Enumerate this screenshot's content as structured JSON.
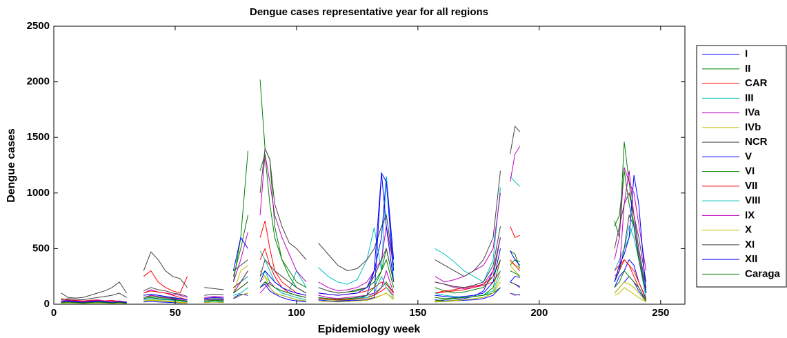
{
  "chart_data": {
    "type": "line",
    "title": "Dengue cases representative year for all regions",
    "x_label": "Epidemiology week",
    "y_label": "Dengue cases",
    "xlim": [
      0,
      260
    ],
    "xticks": [
      0,
      50,
      100,
      150,
      200,
      250
    ],
    "ylim": [
      0,
      2500
    ],
    "yticks": [
      0,
      500,
      1000,
      1500,
      2000,
      2500
    ],
    "legend": "outside-right",
    "x": [
      3,
      6,
      9,
      12,
      15,
      18,
      21,
      24,
      27,
      30,
      33,
      37,
      40,
      43,
      46,
      49,
      52,
      55,
      59,
      62,
      66,
      70,
      72,
      74,
      77,
      80,
      83,
      85,
      87,
      89,
      91,
      94,
      97,
      100,
      104,
      107,
      109,
      113,
      117,
      121,
      125,
      129,
      132,
      135,
      137,
      140,
      150,
      157,
      161,
      165,
      169,
      173,
      177,
      181,
      184,
      186,
      188,
      190,
      192,
      210,
      231,
      233,
      235,
      237,
      239,
      241,
      244
    ],
    "series": [
      {
        "name": "I",
        "color": "#0000ff",
        "values": [
          20,
          30,
          25,
          20,
          25,
          30,
          20,
          25,
          20,
          15,
          null,
          40,
          50,
          45,
          40,
          45,
          35,
          20,
          null,
          30,
          35,
          30,
          null,
          60,
          90,
          80,
          null,
          150,
          180,
          120,
          90,
          60,
          40,
          30,
          20,
          null,
          30,
          25,
          30,
          35,
          45,
          80,
          300,
          600,
          1150,
          400,
          null,
          40,
          30,
          35,
          50,
          70,
          120,
          300,
          600,
          null,
          200,
          250,
          240,
          null,
          150,
          250,
          300,
          400,
          350,
          200,
          50
        ]
      },
      {
        "name": "II",
        "color": "#008000",
        "values": [
          30,
          40,
          30,
          25,
          20,
          25,
          30,
          20,
          25,
          20,
          null,
          60,
          70,
          60,
          55,
          50,
          40,
          30,
          null,
          40,
          45,
          40,
          null,
          200,
          600,
          1380,
          null,
          2020,
          1400,
          1300,
          700,
          400,
          250,
          150,
          100,
          null,
          50,
          40,
          40,
          45,
          50,
          60,
          80,
          150,
          200,
          100,
          null,
          30,
          40,
          50,
          60,
          70,
          80,
          100,
          150,
          null,
          350,
          400,
          380,
          null,
          750,
          600,
          1460,
          1100,
          700,
          400,
          100
        ]
      },
      {
        "name": "CAR",
        "color": "#ff0000",
        "values": [
          50,
          40,
          35,
          30,
          35,
          40,
          30,
          35,
          25,
          20,
          null,
          250,
          300,
          200,
          150,
          120,
          100,
          250,
          null,
          50,
          60,
          55,
          null,
          150,
          200,
          250,
          null,
          600,
          750,
          500,
          300,
          200,
          150,
          100,
          80,
          null,
          100,
          90,
          80,
          90,
          100,
          120,
          150,
          200,
          180,
          100,
          null,
          100,
          110,
          120,
          130,
          150,
          170,
          200,
          300,
          null,
          700,
          600,
          620,
          null,
          200,
          300,
          400,
          350,
          250,
          150,
          30
        ]
      },
      {
        "name": "III",
        "color": "#00bfbf",
        "values": [
          20,
          25,
          20,
          15,
          20,
          25,
          20,
          15,
          20,
          15,
          null,
          80,
          90,
          80,
          70,
          60,
          50,
          40,
          null,
          30,
          40,
          35,
          null,
          100,
          200,
          250,
          null,
          480,
          400,
          300,
          200,
          150,
          120,
          300,
          150,
          null,
          330,
          250,
          200,
          180,
          220,
          400,
          690,
          300,
          1150,
          200,
          null,
          500,
          450,
          380,
          300,
          250,
          200,
          400,
          1050,
          null,
          1150,
          1100,
          1060,
          null,
          300,
          400,
          500,
          600,
          740,
          500,
          100
        ]
      },
      {
        "name": "IVa",
        "color": "#bf00bf",
        "values": [
          30,
          35,
          30,
          25,
          30,
          35,
          30,
          25,
          30,
          20,
          null,
          100,
          130,
          110,
          100,
          90,
          80,
          60,
          null,
          60,
          70,
          65,
          null,
          200,
          400,
          650,
          null,
          800,
          1350,
          1100,
          800,
          600,
          450,
          300,
          200,
          null,
          200,
          150,
          120,
          130,
          150,
          200,
          300,
          400,
          700,
          350,
          null,
          250,
          200,
          220,
          250,
          300,
          350,
          500,
          1000,
          null,
          1100,
          1350,
          1420,
          null,
          400,
          600,
          1230,
          1100,
          1000,
          720,
          300
        ]
      },
      {
        "name": "IVb",
        "color": "#bfbf00",
        "values": [
          15,
          20,
          15,
          10,
          15,
          20,
          15,
          10,
          15,
          10,
          null,
          30,
          40,
          35,
          30,
          25,
          20,
          15,
          null,
          20,
          25,
          20,
          null,
          100,
          300,
          350,
          null,
          300,
          250,
          200,
          150,
          100,
          80,
          60,
          40,
          null,
          50,
          40,
          35,
          40,
          45,
          50,
          60,
          80,
          100,
          50,
          null,
          30,
          25,
          35,
          40,
          50,
          60,
          100,
          200,
          null,
          380,
          350,
          330,
          null,
          80,
          100,
          150,
          120,
          90,
          60,
          20
        ]
      },
      {
        "name": "NCR",
        "color": "#404040",
        "values": [
          100,
          60,
          55,
          60,
          80,
          100,
          120,
          150,
          200,
          100,
          null,
          300,
          470,
          400,
          300,
          250,
          230,
          150,
          null,
          150,
          140,
          130,
          null,
          300,
          350,
          400,
          null,
          1000,
          1400,
          1300,
          900,
          700,
          550,
          500,
          400,
          null,
          550,
          450,
          350,
          300,
          320,
          400,
          500,
          700,
          800,
          350,
          null,
          400,
          350,
          300,
          250,
          300,
          400,
          600,
          1200,
          null,
          1350,
          1600,
          1550,
          null,
          500,
          700,
          900,
          1000,
          800,
          600,
          200
        ]
      },
      {
        "name": "V",
        "color": "#0000ff",
        "values": [
          10,
          15,
          12,
          10,
          12,
          15,
          10,
          12,
          10,
          8,
          null,
          20,
          25,
          20,
          18,
          15,
          12,
          10,
          null,
          15,
          20,
          15,
          null,
          50,
          80,
          100,
          null,
          150,
          200,
          150,
          100,
          80,
          60,
          40,
          30,
          null,
          40,
          30,
          25,
          30,
          35,
          40,
          60,
          1180,
          700,
          200,
          null,
          20,
          25,
          30,
          35,
          40,
          50,
          80,
          150,
          null,
          200,
          180,
          150,
          null,
          100,
          150,
          200,
          250,
          200,
          120,
          30
        ]
      },
      {
        "name": "VI",
        "color": "#008000",
        "values": [
          20,
          25,
          20,
          15,
          20,
          25,
          20,
          15,
          20,
          15,
          null,
          60,
          80,
          70,
          60,
          55,
          50,
          40,
          null,
          40,
          50,
          45,
          null,
          250,
          500,
          800,
          null,
          1200,
          1350,
          900,
          600,
          400,
          300,
          200,
          150,
          null,
          150,
          120,
          100,
          110,
          120,
          150,
          200,
          300,
          500,
          200,
          null,
          150,
          120,
          100,
          110,
          130,
          150,
          250,
          600,
          null,
          480,
          450,
          320,
          null,
          700,
          800,
          1200,
          900,
          700,
          450,
          100
        ]
      },
      {
        "name": "VII",
        "color": "#ff0000",
        "values": [
          15,
          20,
          18,
          15,
          18,
          20,
          15,
          18,
          15,
          10,
          null,
          100,
          120,
          110,
          100,
          80,
          60,
          40,
          null,
          30,
          35,
          30,
          null,
          100,
          150,
          200,
          null,
          400,
          500,
          350,
          250,
          150,
          100,
          80,
          60,
          null,
          50,
          45,
          40,
          45,
          50,
          60,
          80,
          120,
          150,
          80,
          null,
          100,
          120,
          130,
          150,
          160,
          180,
          250,
          400,
          null,
          400,
          350,
          300,
          null,
          300,
          350,
          400,
          350,
          300,
          200,
          40
        ]
      },
      {
        "name": "VIII",
        "color": "#00bfbf",
        "values": [
          10,
          12,
          10,
          8,
          10,
          12,
          10,
          8,
          10,
          8,
          null,
          40,
          50,
          45,
          40,
          35,
          30,
          20,
          null,
          20,
          25,
          20,
          null,
          80,
          100,
          150,
          null,
          250,
          300,
          200,
          150,
          100,
          80,
          60,
          40,
          null,
          60,
          50,
          45,
          50,
          55,
          60,
          100,
          250,
          150,
          60,
          null,
          100,
          80,
          70,
          60,
          70,
          80,
          120,
          300,
          null,
          100,
          90,
          80,
          null,
          200,
          300,
          500,
          700,
          600,
          400,
          50
        ]
      },
      {
        "name": "IX",
        "color": "#bf00bf",
        "values": [
          20,
          25,
          20,
          18,
          20,
          25,
          20,
          18,
          20,
          15,
          null,
          60,
          80,
          70,
          60,
          50,
          40,
          30,
          null,
          40,
          45,
          40,
          null,
          100,
          200,
          300,
          null,
          100,
          150,
          200,
          150,
          120,
          100,
          80,
          60,
          null,
          80,
          60,
          50,
          60,
          70,
          80,
          100,
          150,
          300,
          100,
          null,
          200,
          180,
          150,
          140,
          150,
          180,
          300,
          600,
          null,
          100,
          80,
          90,
          null,
          250,
          300,
          900,
          1200,
          800,
          500,
          150
        ]
      },
      {
        "name": "X",
        "color": "#bfbf00",
        "values": [
          10,
          12,
          10,
          8,
          10,
          12,
          10,
          8,
          10,
          8,
          null,
          30,
          35,
          30,
          25,
          20,
          15,
          10,
          null,
          15,
          20,
          15,
          null,
          60,
          80,
          100,
          null,
          200,
          250,
          150,
          100,
          80,
          60,
          40,
          30,
          null,
          30,
          25,
          20,
          25,
          30,
          35,
          50,
          80,
          100,
          40,
          null,
          20,
          25,
          30,
          40,
          50,
          60,
          100,
          250,
          null,
          350,
          300,
          250,
          null,
          100,
          150,
          200,
          180,
          150,
          100,
          20
        ]
      },
      {
        "name": "XI",
        "color": "#404040",
        "values": [
          40,
          50,
          45,
          40,
          50,
          60,
          70,
          80,
          100,
          60,
          null,
          120,
          150,
          130,
          120,
          100,
          90,
          70,
          null,
          80,
          90,
          85,
          null,
          150,
          200,
          300,
          null,
          250,
          400,
          350,
          300,
          250,
          200,
          150,
          100,
          null,
          150,
          120,
          100,
          110,
          130,
          150,
          250,
          400,
          500,
          200,
          null,
          200,
          180,
          160,
          150,
          170,
          200,
          350,
          700,
          null,
          200,
          180,
          160,
          null,
          200,
          300,
          500,
          800,
          700,
          400,
          100
        ]
      },
      {
        "name": "XII",
        "color": "#0000ff",
        "values": [
          20,
          25,
          20,
          15,
          20,
          25,
          20,
          15,
          20,
          15,
          null,
          80,
          90,
          80,
          70,
          60,
          50,
          40,
          null,
          50,
          60,
          55,
          null,
          300,
          600,
          500,
          null,
          200,
          300,
          250,
          200,
          150,
          120,
          100,
          80,
          null,
          100,
          90,
          80,
          90,
          100,
          150,
          300,
          1180,
          1100,
          300,
          null,
          80,
          70,
          60,
          70,
          80,
          100,
          200,
          500,
          null,
          480,
          400,
          350,
          null,
          200,
          350,
          450,
          600,
          1160,
          900,
          100
        ]
      },
      {
        "name": "Caraga",
        "color": "#008000",
        "values": [
          15,
          20,
          15,
          12,
          15,
          20,
          15,
          12,
          15,
          10,
          null,
          50,
          60,
          50,
          45,
          40,
          35,
          25,
          null,
          30,
          35,
          30,
          null,
          100,
          150,
          200,
          null,
          150,
          200,
          180,
          150,
          120,
          100,
          80,
          60,
          null,
          60,
          50,
          45,
          50,
          60,
          80,
          150,
          300,
          400,
          150,
          null,
          60,
          50,
          55,
          60,
          70,
          80,
          150,
          400,
          null,
          300,
          280,
          250,
          null,
          150,
          200,
          300,
          250,
          200,
          150,
          30
        ]
      }
    ]
  }
}
